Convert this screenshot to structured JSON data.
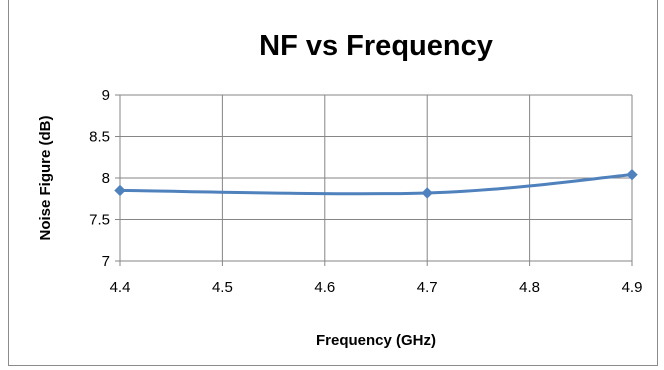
{
  "chart_data": {
    "type": "line",
    "title": "NF vs Frequency",
    "xlabel": "Frequency (GHz)",
    "ylabel": "Noise Figure (dB)",
    "xlim": [
      4.4,
      4.9
    ],
    "ylim": [
      7,
      9
    ],
    "x_ticks": [
      "4.4",
      "4.5",
      "4.6",
      "4.7",
      "4.8",
      "4.9"
    ],
    "y_ticks": [
      "7",
      "7.5",
      "8",
      "8.5",
      "9"
    ],
    "grid": true,
    "legend": "none",
    "series": [
      {
        "x": [
          4.4,
          4.7,
          4.9
        ],
        "y": [
          7.85,
          7.82,
          8.04
        ],
        "color": "#4f81bd",
        "marker": "diamond",
        "smooth": true
      }
    ]
  }
}
